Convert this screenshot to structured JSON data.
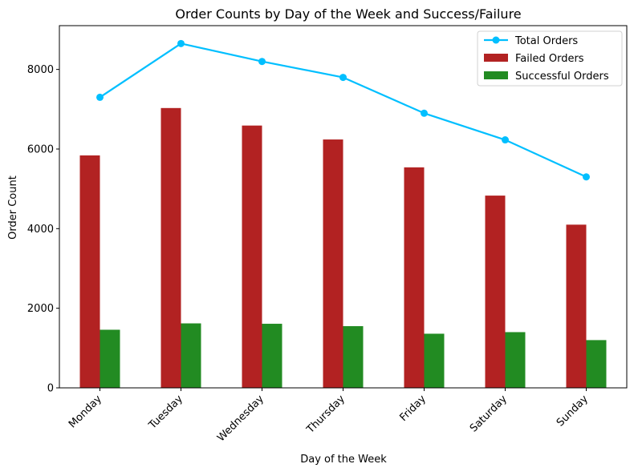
{
  "chart_data": {
    "type": "bar",
    "title": "Order Counts by Day of the Week and Success/Failure",
    "xlabel": "Day of the Week",
    "ylabel": "Order Count",
    "categories": [
      "Monday",
      "Tuesday",
      "Wednesday",
      "Thursday",
      "Friday",
      "Saturday",
      "Sunday"
    ],
    "ylim": [
      0,
      9100
    ],
    "yticks": [
      0,
      2000,
      4000,
      6000,
      8000
    ],
    "grid": false,
    "legend_position": "top-right",
    "series": [
      {
        "name": "Total Orders",
        "kind": "line",
        "color": "#00bfff",
        "marker": "circle",
        "values": [
          7300,
          8650,
          8200,
          7800,
          6900,
          6230,
          5300
        ]
      },
      {
        "name": "Failed Orders",
        "kind": "bar",
        "color": "#b22222",
        "values": [
          5840,
          7030,
          6590,
          6240,
          5540,
          4830,
          4100
        ]
      },
      {
        "name": "Successful Orders",
        "kind": "bar",
        "color": "#228b22",
        "values": [
          1460,
          1620,
          1610,
          1550,
          1360,
          1400,
          1200
        ]
      }
    ]
  }
}
